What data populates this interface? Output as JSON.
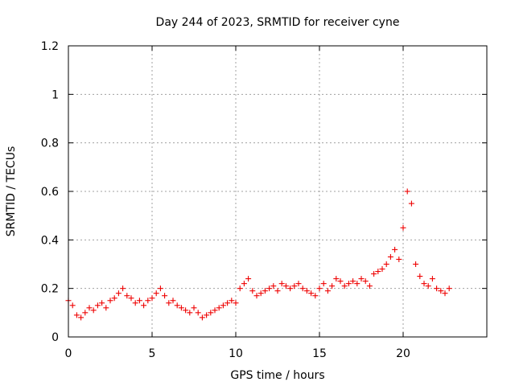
{
  "chart_data": {
    "type": "scatter",
    "title": "Day 244 of 2023, SRMTID for receiver cyne",
    "xlabel": "GPS time / hours",
    "ylabel": "SRMTID / TECUs",
    "xlim": [
      0,
      25
    ],
    "ylim": [
      0,
      1.2
    ],
    "xticks": [
      0,
      5,
      10,
      15,
      20
    ],
    "xtick_labels": [
      "0",
      "5",
      "10",
      "15",
      "20"
    ],
    "yticks": [
      0,
      0.2,
      0.4,
      0.6,
      0.8,
      1,
      1.2
    ],
    "ytick_labels": [
      "0",
      "0.2",
      "0.4",
      "0.6",
      "0.8",
      "1",
      "1.2"
    ],
    "grid": true,
    "marker": "+",
    "color": "#ee0000",
    "series": [
      {
        "name": "SRMTID",
        "x": [
          0.0,
          0.25,
          0.5,
          0.75,
          1.0,
          1.25,
          1.5,
          1.75,
          2.0,
          2.25,
          2.5,
          2.75,
          3.0,
          3.25,
          3.5,
          3.75,
          4.0,
          4.25,
          4.5,
          4.75,
          5.0,
          5.25,
          5.5,
          5.75,
          6.0,
          6.25,
          6.5,
          6.75,
          7.0,
          7.25,
          7.5,
          7.75,
          8.0,
          8.25,
          8.5,
          8.75,
          9.0,
          9.25,
          9.5,
          9.75,
          10.0,
          10.25,
          10.5,
          10.75,
          11.0,
          11.25,
          11.5,
          11.75,
          12.0,
          12.25,
          12.5,
          12.75,
          13.0,
          13.25,
          13.5,
          13.75,
          14.0,
          14.25,
          14.5,
          14.75,
          15.0,
          15.25,
          15.5,
          15.75,
          16.0,
          16.25,
          16.5,
          16.75,
          17.0,
          17.25,
          17.5,
          17.75,
          18.0,
          18.25,
          18.5,
          18.75,
          19.0,
          19.25,
          19.5,
          19.75,
          20.0,
          20.25,
          20.5,
          20.75,
          21.0,
          21.25,
          21.5,
          21.75,
          22.0,
          22.25,
          22.5,
          22.75
        ],
        "y": [
          0.15,
          0.13,
          0.09,
          0.08,
          0.1,
          0.12,
          0.11,
          0.13,
          0.14,
          0.12,
          0.15,
          0.16,
          0.18,
          0.2,
          0.17,
          0.16,
          0.14,
          0.15,
          0.13,
          0.15,
          0.16,
          0.18,
          0.2,
          0.17,
          0.14,
          0.15,
          0.13,
          0.12,
          0.11,
          0.1,
          0.12,
          0.1,
          0.08,
          0.09,
          0.1,
          0.11,
          0.12,
          0.13,
          0.14,
          0.15,
          0.14,
          0.2,
          0.22,
          0.24,
          0.19,
          0.17,
          0.18,
          0.19,
          0.2,
          0.21,
          0.19,
          0.22,
          0.21,
          0.2,
          0.21,
          0.22,
          0.2,
          0.19,
          0.18,
          0.17,
          0.2,
          0.22,
          0.19,
          0.21,
          0.24,
          0.23,
          0.21,
          0.22,
          0.23,
          0.22,
          0.24,
          0.23,
          0.21,
          0.26,
          0.27,
          0.28,
          0.3,
          0.33,
          0.36,
          0.32,
          0.45,
          0.6,
          0.55,
          0.3,
          0.25,
          0.22,
          0.21,
          0.24,
          0.2,
          0.19,
          0.18,
          0.2
        ]
      }
    ],
    "annotations": []
  }
}
